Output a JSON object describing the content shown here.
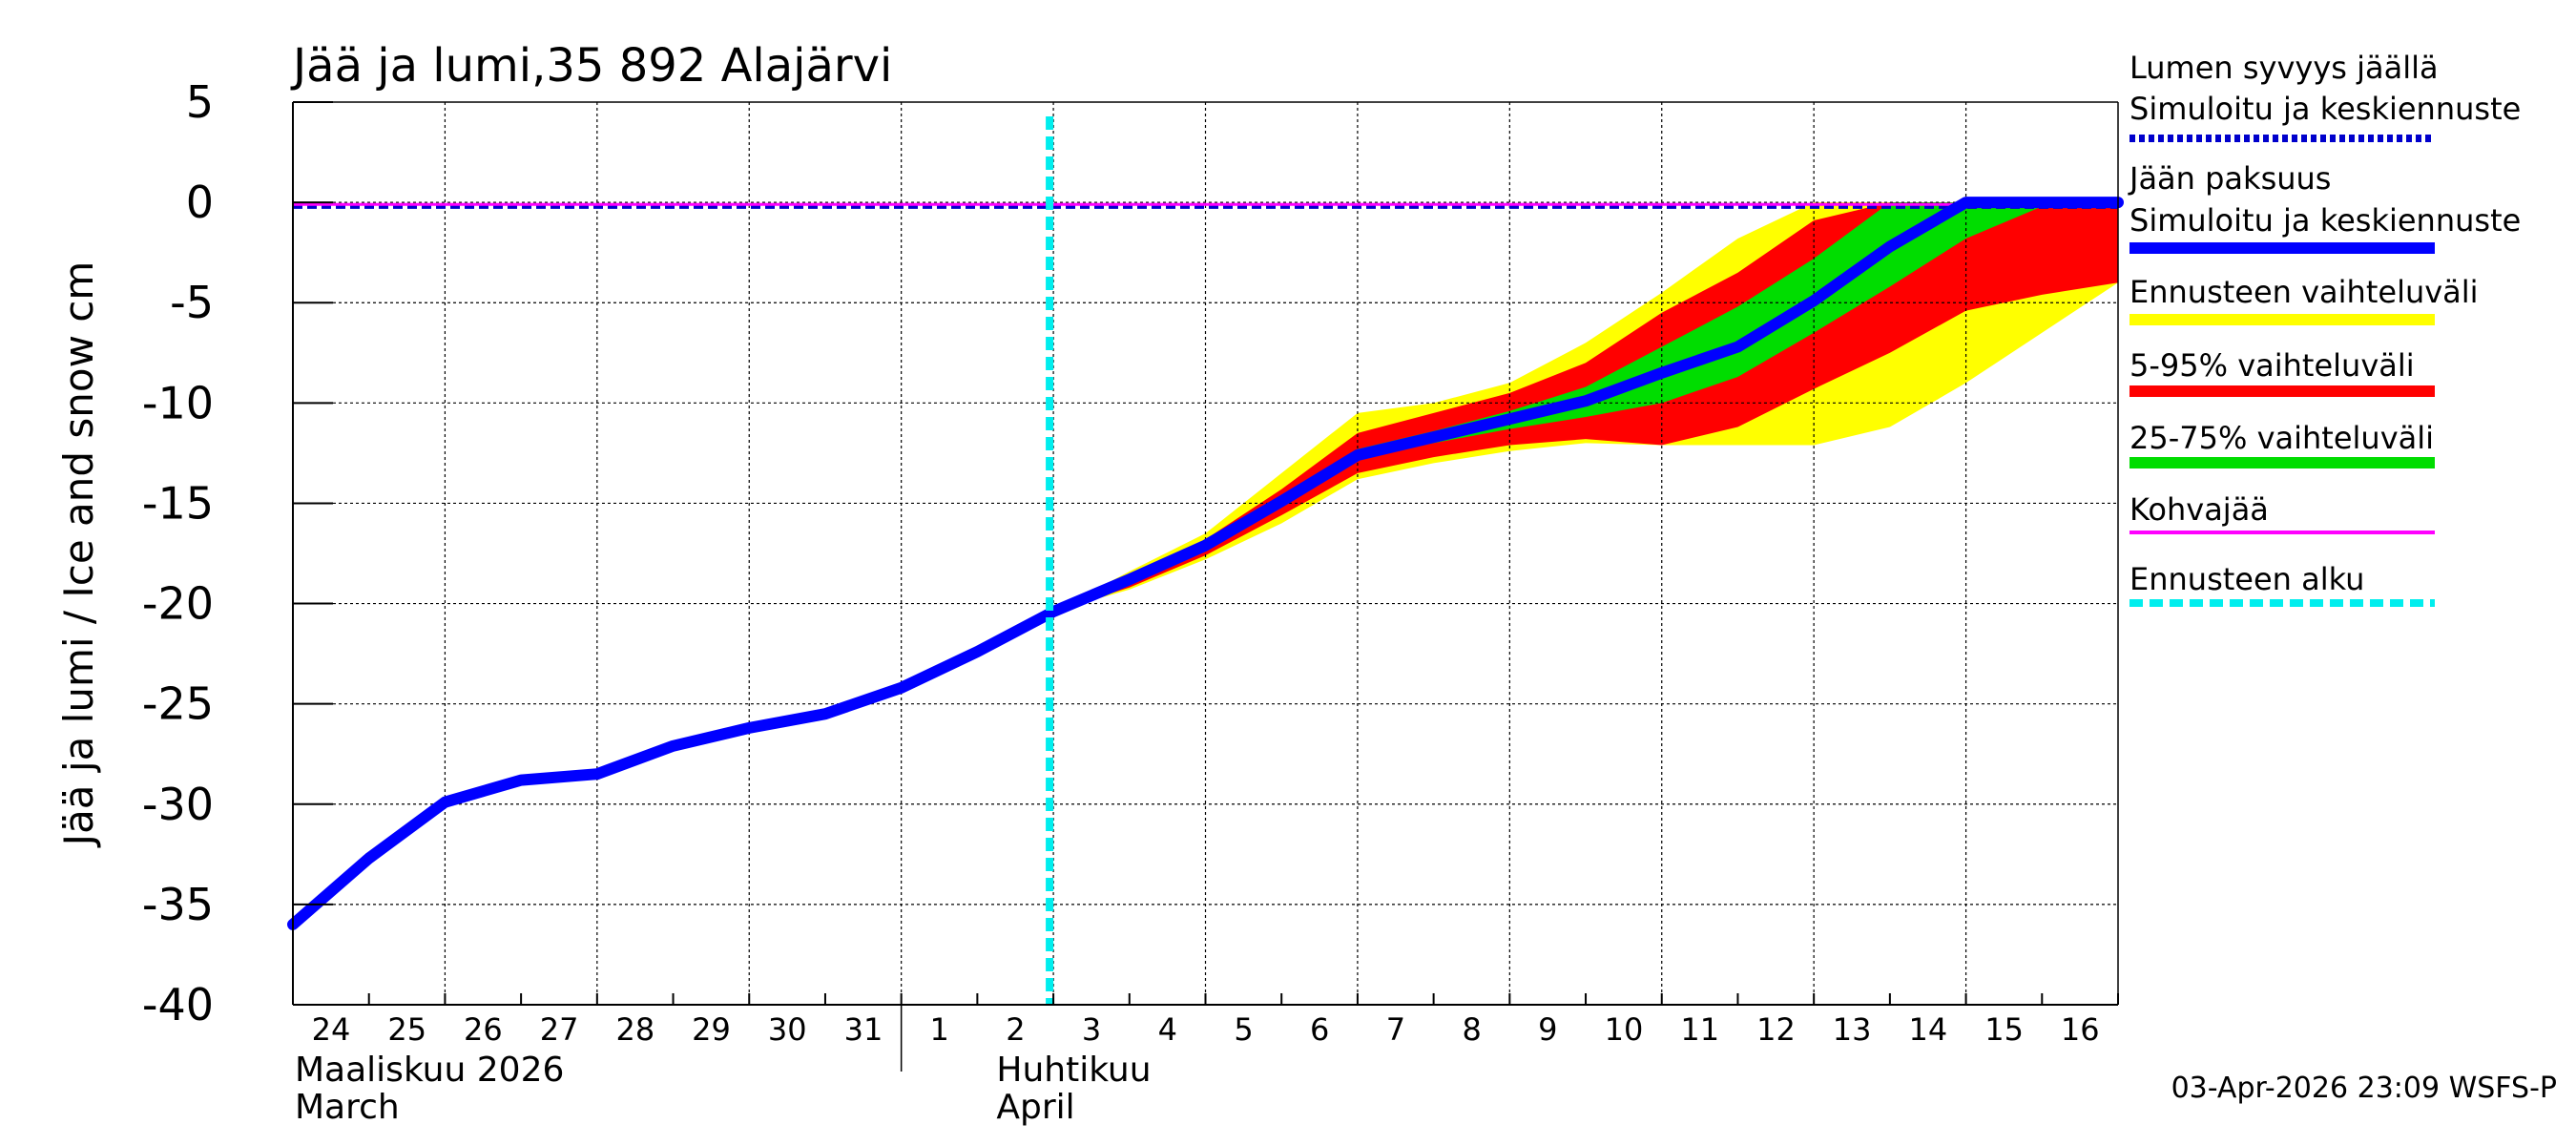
{
  "chart_data": {
    "type": "area",
    "title": "Jää ja lumi,35 892 Alajärvi",
    "ylabel": "Jää ja lumi / Ice and snow    cm",
    "ylim": [
      -40,
      5
    ],
    "yticks": [
      5,
      0,
      -5,
      -10,
      -15,
      -20,
      -25,
      -30,
      -35,
      -40
    ],
    "x_day_range": [
      0,
      24
    ],
    "x_day_labels": [
      "24",
      "25",
      "26",
      "27",
      "28",
      "29",
      "30",
      "31",
      "1",
      "2",
      "3",
      "4",
      "5",
      "6",
      "7",
      "8",
      "9",
      "10",
      "11",
      "12",
      "13",
      "14",
      "15",
      "16"
    ],
    "month_labels": [
      {
        "fi": "Maaliskuu 2026",
        "en": "March",
        "day": 0
      },
      {
        "fi": "Huhtikuu",
        "en": "April",
        "day": 9
      }
    ],
    "month_boundary_day": 8,
    "forecast_start_day": 10,
    "grid": true,
    "series": [
      {
        "name": "Jään paksuus - Simuloitu ja keskiennuste",
        "color": "#0000ff",
        "x": [
          0,
          1,
          2,
          3,
          4,
          5,
          6,
          7,
          8,
          9,
          10,
          11,
          12,
          13,
          14,
          15,
          16,
          17,
          18,
          19,
          20,
          21,
          22,
          23,
          24
        ],
        "y": [
          -36.0,
          -32.7,
          -29.9,
          -28.8,
          -28.5,
          -27.1,
          -26.2,
          -25.5,
          -24.2,
          -22.4,
          -20.4,
          -18.8,
          -17.1,
          -14.9,
          -12.6,
          -11.7,
          -10.8,
          -9.9,
          -8.5,
          -7.2,
          -4.9,
          -2.2,
          0,
          0,
          0
        ]
      },
      {
        "name": "Lumen syvyys jäällä - Simuloitu ja keskiennuste",
        "color": "#0000cc",
        "x": [
          0,
          24
        ],
        "y": [
          -0.2,
          -0.2
        ]
      },
      {
        "name": "Kohvajää",
        "color": "#ff00ff",
        "x": [
          0,
          24
        ],
        "y": [
          -0.1,
          -0.1
        ]
      }
    ],
    "bands": [
      {
        "name": "Ennusteen vaihteluväli",
        "color": "#ffff00",
        "x": [
          10,
          11,
          12,
          13,
          14,
          15,
          16,
          17,
          18,
          19,
          20,
          21,
          22,
          23,
          24
        ],
        "upper": [
          -20.4,
          -18.4,
          -16.5,
          -13.5,
          -10.5,
          -10.0,
          -9.0,
          -7.0,
          -4.5,
          -1.8,
          0,
          0,
          0,
          0,
          0
        ],
        "lower": [
          -20.4,
          -19.3,
          -17.8,
          -16.0,
          -13.8,
          -13.0,
          -12.4,
          -12.0,
          -12.1,
          -12.1,
          -12.1,
          -11.2,
          -9.0,
          -6.5,
          -4.0
        ]
      },
      {
        "name": "5-95% vaihteluväli",
        "color": "#ff0000",
        "x": [
          10,
          11,
          12,
          13,
          14,
          15,
          16,
          17,
          18,
          19,
          20,
          21,
          22,
          23,
          24
        ],
        "upper": [
          -20.4,
          -18.6,
          -16.8,
          -14.3,
          -11.5,
          -10.5,
          -9.5,
          -8.0,
          -5.5,
          -3.5,
          -0.9,
          0,
          0,
          0,
          0
        ],
        "lower": [
          -20.4,
          -19.2,
          -17.6,
          -15.6,
          -13.5,
          -12.7,
          -12.1,
          -11.8,
          -12.1,
          -11.2,
          -9.3,
          -7.5,
          -5.4,
          -4.6,
          -4.0
        ]
      },
      {
        "name": "25-75% vaihteluväli",
        "color": "#00dd00",
        "x": [
          10,
          11,
          12,
          13,
          14,
          15,
          16,
          17,
          18,
          19,
          20,
          21,
          22,
          23,
          24
        ],
        "upper": [
          -20.4,
          -18.8,
          -17.0,
          -14.8,
          -12.3,
          -11.4,
          -10.4,
          -9.2,
          -7.2,
          -5.2,
          -2.8,
          0,
          0,
          0,
          0
        ],
        "lower": [
          -20.4,
          -19.0,
          -17.3,
          -15.1,
          -12.8,
          -12.0,
          -11.3,
          -10.7,
          -10.0,
          -8.7,
          -6.5,
          -4.2,
          -1.8,
          -0.2,
          0
        ]
      }
    ],
    "legend": [
      {
        "line1": "Lumen syvyys jäällä",
        "line2": "Simuloitu ja keskiennuste",
        "color": "#0000cc",
        "style": "dotted"
      },
      {
        "line1": "Jään paksuus",
        "line2": "Simuloitu ja keskiennuste",
        "color": "#0000ff",
        "style": "solid"
      },
      {
        "line1": "Ennusteen vaihteluväli",
        "line2": "",
        "color": "#ffff00",
        "style": "solid"
      },
      {
        "line1": "5-95% vaihteluväli",
        "line2": "",
        "color": "#ff0000",
        "style": "solid"
      },
      {
        "line1": "25-75% vaihteluväli",
        "line2": "",
        "color": "#00dd00",
        "style": "solid"
      },
      {
        "line1": "Kohvajää",
        "line2": "",
        "color": "#ff00ff",
        "style": "thin"
      },
      {
        "line1": "Ennusteen alku",
        "line2": "",
        "color": "#00eeee",
        "style": "dashed"
      }
    ],
    "legend_position": "right",
    "footer": "03-Apr-2026 23:09 WSFS-P"
  }
}
